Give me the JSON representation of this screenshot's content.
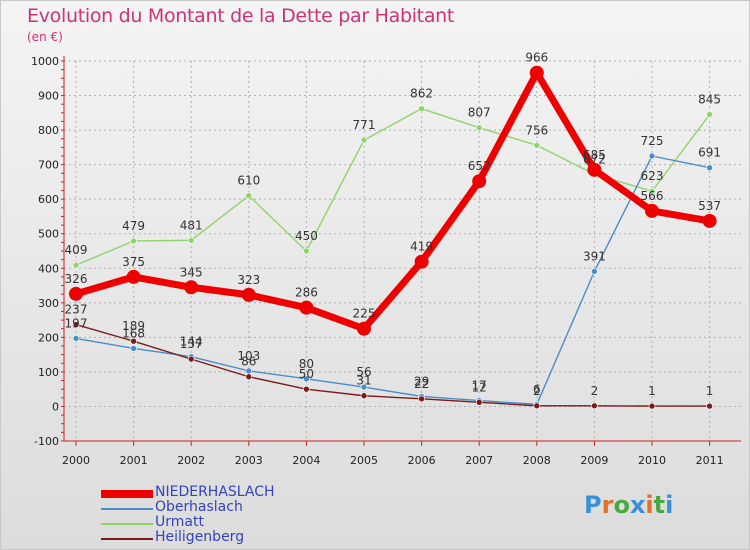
{
  "title": "Evolution du Montant de la Dette par Habitant",
  "subtitle": "(en €)",
  "logo": {
    "text": "Proxiti",
    "colors": [
      "#3b8fd6",
      "#e0702a",
      "#4aa840",
      "#3b8fd6",
      "#e0702a",
      "#4aa840",
      "#3b8fd6"
    ]
  },
  "chart_data": {
    "type": "line",
    "x": [
      "2000",
      "2001",
      "2002",
      "2003",
      "2004",
      "2005",
      "2006",
      "2007",
      "2008",
      "2009",
      "2010",
      "2011"
    ],
    "ylim": [
      -100,
      1000
    ],
    "yticks": [
      -100,
      0,
      100,
      200,
      300,
      400,
      500,
      600,
      700,
      800,
      900,
      1000
    ],
    "grid": true,
    "legend_position": "bottom-left",
    "series": [
      {
        "name": "NIEDERHASLACH",
        "color": "#ee0000",
        "values": [
          326,
          375,
          345,
          323,
          286,
          225,
          419,
          652,
          966,
          685,
          566,
          537
        ]
      },
      {
        "name": "Oberhaslach",
        "color": "#4a8cc8",
        "values": [
          197,
          168,
          144,
          103,
          80,
          56,
          29,
          17,
          6,
          391,
          725,
          691
        ]
      },
      {
        "name": "Urmatt",
        "color": "#8fd46a",
        "values": [
          409,
          479,
          481,
          610,
          450,
          771,
          862,
          807,
          756,
          672,
          623,
          845
        ]
      },
      {
        "name": "Heiligenberg",
        "color": "#7a1a1a",
        "values": [
          237,
          189,
          137,
          86,
          50,
          31,
          22,
          12,
          2,
          2,
          1,
          1
        ]
      }
    ]
  }
}
